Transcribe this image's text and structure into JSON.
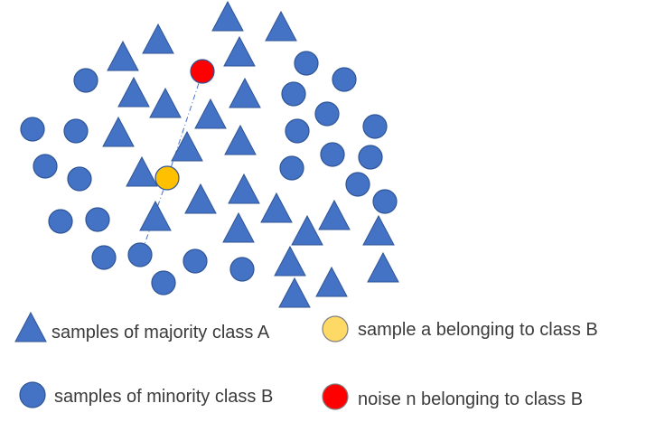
{
  "colors": {
    "majority": "#4472C4",
    "majority_stroke": "#2F5597",
    "minority": "#4472C4",
    "minority_stroke": "#2F5597",
    "sample_a": "#FFC000",
    "sample_a_stroke": "#2F5597",
    "noise": "#FF0000",
    "noise_stroke": "#2F5597",
    "legend_sample_a": "#FFD966",
    "link_line": "#4472C4",
    "text": "#3b3b3b"
  },
  "legend": {
    "majority_label": "samples of majority class A",
    "minority_label": "samples of minority class B",
    "sample_a_label": "sample a belonging to class B",
    "noise_label": "noise n belonging to class B"
  }
}
